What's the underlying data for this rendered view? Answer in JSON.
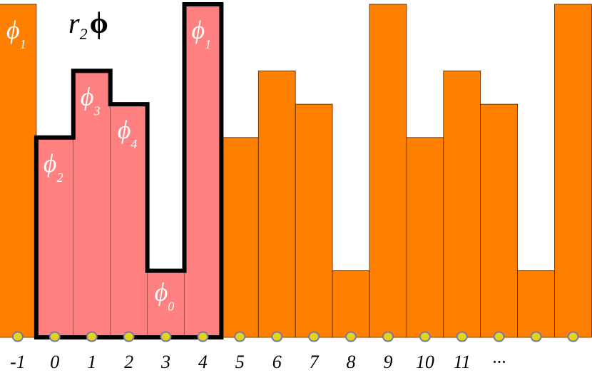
{
  "title": {
    "r": "r",
    "subscript": "2",
    "phi": "ϕ"
  },
  "colors": {
    "orange": "#ff8000",
    "pink": "#ff8080",
    "outline": "#000000",
    "dot_fill": "#e0d41c",
    "dot_stroke": "#7878a8",
    "label_white": "#ffffff"
  },
  "chart_data": {
    "type": "bar",
    "phi_heights": {
      "0": 1,
      "1": 5,
      "2": 3,
      "3": 4,
      "4": 3.5
    },
    "categories": [
      "-1",
      "0",
      "1",
      "2",
      "3",
      "4",
      "5",
      "6",
      "7",
      "8",
      "9",
      "10",
      "11",
      "···",
      "",
      ""
    ],
    "bars": [
      {
        "index": "-1",
        "phi": "1",
        "highlighted": false,
        "label": {
          "base": "ϕ",
          "sub": "1"
        }
      },
      {
        "index": "0",
        "phi": "2",
        "highlighted": true,
        "label": {
          "base": "ϕ",
          "sub": "2"
        }
      },
      {
        "index": "1",
        "phi": "3",
        "highlighted": true,
        "label": {
          "base": "ϕ",
          "sub": "3"
        }
      },
      {
        "index": "2",
        "phi": "4",
        "highlighted": true,
        "label": {
          "base": "ϕ",
          "sub": "4"
        }
      },
      {
        "index": "3",
        "phi": "0",
        "highlighted": true,
        "label": {
          "base": "ϕ",
          "sub": "0"
        }
      },
      {
        "index": "4",
        "phi": "1",
        "highlighted": true,
        "label": {
          "base": "ϕ",
          "sub": "1"
        }
      },
      {
        "index": "5",
        "phi": "2",
        "highlighted": false,
        "label": null
      },
      {
        "index": "6",
        "phi": "3",
        "highlighted": false,
        "label": null
      },
      {
        "index": "7",
        "phi": "4",
        "highlighted": false,
        "label": null
      },
      {
        "index": "8",
        "phi": "0",
        "highlighted": false,
        "label": null
      },
      {
        "index": "9",
        "phi": "1",
        "highlighted": false,
        "label": null
      },
      {
        "index": "10",
        "phi": "2",
        "highlighted": false,
        "label": null
      },
      {
        "index": "11",
        "phi": "3",
        "highlighted": false,
        "label": null
      },
      {
        "index": "···",
        "phi": "4",
        "highlighted": false,
        "label": null
      },
      {
        "index": "",
        "phi": "0",
        "highlighted": false,
        "label": null
      },
      {
        "index": "",
        "phi": "1",
        "highlighted": false,
        "label": null
      }
    ]
  }
}
